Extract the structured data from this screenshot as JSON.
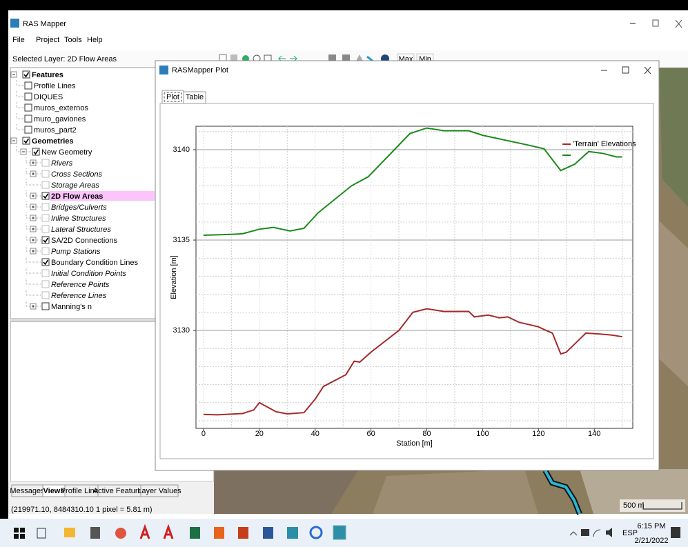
{
  "window": {
    "title": "RAS Mapper"
  },
  "menu": [
    "File",
    "Project",
    "Tools",
    "Help"
  ],
  "toolbar": {
    "selected_layer": "Selected Layer: 2D Flow Areas",
    "max": "Max",
    "min": "Min"
  },
  "tree": [
    {
      "label": "Features",
      "level": 0,
      "expander": true,
      "checked": true,
      "bold": true,
      "disabled": false,
      "selected": false
    },
    {
      "label": "Profile Lines",
      "level": 1,
      "expander": false,
      "checked": false,
      "bold": false,
      "disabled": false,
      "selected": false
    },
    {
      "label": "DIQUES",
      "level": 1,
      "expander": false,
      "checked": false,
      "bold": false,
      "disabled": false,
      "selected": false
    },
    {
      "label": "muros_externos",
      "level": 1,
      "expander": false,
      "checked": false,
      "bold": false,
      "disabled": false,
      "selected": false
    },
    {
      "label": "muro_gaviones",
      "level": 1,
      "expander": false,
      "checked": false,
      "bold": false,
      "disabled": false,
      "selected": false
    },
    {
      "label": "muros_part2",
      "level": 1,
      "expander": false,
      "checked": false,
      "bold": false,
      "disabled": false,
      "selected": false
    },
    {
      "label": "Geometries",
      "level": 0,
      "expander": true,
      "checked": true,
      "bold": true,
      "disabled": false,
      "selected": false
    },
    {
      "label": "New Geometry",
      "level": 1,
      "expander": true,
      "checked": true,
      "bold": false,
      "disabled": false,
      "selected": false
    },
    {
      "label": "Rivers",
      "level": 2,
      "expander": true,
      "checked": false,
      "bold": false,
      "disabled": true,
      "selected": false
    },
    {
      "label": "Cross Sections",
      "level": 2,
      "expander": true,
      "checked": false,
      "bold": false,
      "disabled": true,
      "selected": false
    },
    {
      "label": "Storage Areas",
      "level": 2,
      "expander": false,
      "checked": false,
      "bold": false,
      "disabled": true,
      "selected": false
    },
    {
      "label": "2D Flow Areas",
      "level": 2,
      "expander": true,
      "checked": true,
      "bold": true,
      "disabled": false,
      "selected": true
    },
    {
      "label": "Bridges/Culverts",
      "level": 2,
      "expander": true,
      "checked": false,
      "bold": false,
      "disabled": true,
      "selected": false
    },
    {
      "label": "Inline Structures",
      "level": 2,
      "expander": true,
      "checked": false,
      "bold": false,
      "disabled": true,
      "selected": false
    },
    {
      "label": "Lateral Structures",
      "level": 2,
      "expander": true,
      "checked": false,
      "bold": false,
      "disabled": true,
      "selected": false
    },
    {
      "label": "SA/2D Connections",
      "level": 2,
      "expander": true,
      "checked": true,
      "bold": false,
      "disabled": false,
      "selected": false
    },
    {
      "label": "Pump Stations",
      "level": 2,
      "expander": true,
      "checked": false,
      "bold": false,
      "disabled": true,
      "selected": false
    },
    {
      "label": "Boundary Condition Lines",
      "level": 2,
      "expander": false,
      "checked": true,
      "bold": false,
      "disabled": false,
      "selected": false
    },
    {
      "label": "Initial Condition Points",
      "level": 2,
      "expander": false,
      "checked": false,
      "bold": false,
      "disabled": true,
      "selected": false
    },
    {
      "label": "Reference Points",
      "level": 2,
      "expander": false,
      "checked": false,
      "bold": false,
      "disabled": true,
      "selected": false
    },
    {
      "label": "Reference Lines",
      "level": 2,
      "expander": false,
      "checked": false,
      "bold": false,
      "disabled": true,
      "selected": false
    },
    {
      "label": "Manning's n",
      "level": 2,
      "expander": true,
      "checked": false,
      "bold": false,
      "disabled": false,
      "selected": false
    }
  ],
  "bottom_tabs": [
    {
      "label": "Messages",
      "active": false
    },
    {
      "label": "Views",
      "active": true
    },
    {
      "label": "Profile Lines",
      "active": false
    },
    {
      "label": "Active Features",
      "active": false
    },
    {
      "label": "Layer Values",
      "active": false
    }
  ],
  "status": "(219971.10, 8484310.10 1 pixel = 5.81 m)",
  "map": {
    "scale_label": "500 m"
  },
  "plot_window": {
    "title": "RASMapper Plot",
    "tabs": [
      {
        "label": "Plot",
        "active": true
      },
      {
        "label": "Table",
        "active": false
      }
    ]
  },
  "chart_data": {
    "type": "line",
    "x_label": "Station [m]",
    "y_label": "Elevation [m]",
    "xlim": [
      -2.7,
      153.8
    ],
    "ylim": [
      3124.58,
      3141.3
    ],
    "xticks": [
      0,
      20,
      40,
      60,
      80,
      100,
      120,
      140
    ],
    "yticks": [
      3130,
      3135,
      3140
    ],
    "minor_xticks": [
      10,
      30,
      50,
      70,
      90,
      110,
      130,
      150
    ],
    "minor_yticks": [
      3125,
      3126,
      3127,
      3128,
      3129,
      3131,
      3132,
      3133,
      3134,
      3136,
      3137,
      3138,
      3139,
      3141
    ],
    "grid": true,
    "legend": "upper right",
    "series": [
      {
        "name": "'Terrain' Elevations",
        "color": "#a52a2a",
        "x": [
          0,
          5,
          14,
          18,
          20,
          26,
          30,
          36,
          40,
          43,
          51,
          54,
          56,
          60,
          70,
          75,
          80,
          86,
          95,
          97,
          102,
          106,
          109,
          113,
          120,
          122,
          125,
          128,
          130,
          134,
          137,
          142,
          146,
          150
        ],
        "values": [
          3125.35,
          3125.33,
          3125.4,
          3125.6,
          3126.0,
          3125.5,
          3125.38,
          3125.45,
          3126.2,
          3126.9,
          3127.55,
          3128.3,
          3128.25,
          3128.8,
          3130.0,
          3131.0,
          3131.2,
          3131.05,
          3131.05,
          3130.75,
          3130.85,
          3130.7,
          3130.75,
          3130.45,
          3130.2,
          3130.05,
          3129.85,
          3128.7,
          3128.8,
          3129.4,
          3129.85,
          3129.8,
          3129.75,
          3129.65
        ]
      },
      {
        "name": null,
        "color": "#1a8a1a",
        "x": [
          0,
          10,
          14,
          20,
          25,
          31,
          36,
          41,
          53,
          59,
          74,
          80,
          86,
          95,
          100,
          115,
          122,
          128,
          133,
          138,
          143,
          148,
          150
        ],
        "values": [
          3135.27,
          3135.32,
          3135.35,
          3135.6,
          3135.7,
          3135.5,
          3135.65,
          3136.5,
          3138.0,
          3138.5,
          3140.9,
          3141.2,
          3141.05,
          3141.05,
          3140.8,
          3140.3,
          3140.05,
          3138.85,
          3139.2,
          3139.9,
          3139.8,
          3139.6,
          3139.6
        ]
      }
    ]
  },
  "taskbar": {
    "language": "ESP",
    "time": "6:15 PM",
    "date": "2/21/2022"
  }
}
